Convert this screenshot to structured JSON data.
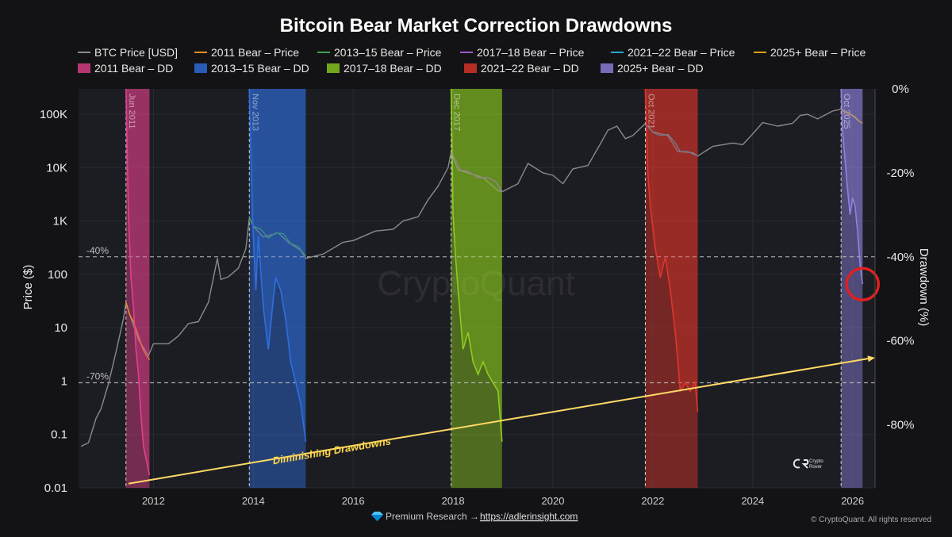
{
  "chart_data": {
    "type": "line",
    "title": "Bitcoin Bear Market Correction Drawdowns",
    "ylabel": "Price ($)",
    "y2label": "Drawdown (%)",
    "xlabel": "",
    "xlim": [
      2010.5,
      2026.45
    ],
    "ylim": [
      0.01,
      300000
    ],
    "y_scale": "log",
    "y2lim": [
      -95,
      0
    ],
    "x_ticks": [
      2012,
      2014,
      2016,
      2018,
      2020,
      2022,
      2024,
      2026
    ],
    "y_ticks": [
      {
        "value": 100000,
        "label": "100K"
      },
      {
        "value": 10000,
        "label": "10K"
      },
      {
        "value": 1000,
        "label": "1K"
      },
      {
        "value": 100,
        "label": "100"
      },
      {
        "value": 10,
        "label": "10"
      },
      {
        "value": 1,
        "label": "1"
      },
      {
        "value": 0.1,
        "label": "0.1"
      },
      {
        "value": 0.01,
        "label": "0.01"
      }
    ],
    "y2_ticks": [
      {
        "value": 0,
        "label": "0%"
      },
      {
        "value": -20,
        "label": "-20%"
      },
      {
        "value": -40,
        "label": "-40%"
      },
      {
        "value": -60,
        "label": "-60%"
      },
      {
        "value": -80,
        "label": "-80%"
      }
    ],
    "grid": true,
    "legend_position": "top",
    "legend": [
      {
        "label": "BTC Price [USD]",
        "kind": "line",
        "color": "#8a8a8a"
      },
      {
        "label": "2011 Bear – Price",
        "kind": "line",
        "color": "#f08a24"
      },
      {
        "label": "2013–15 Bear – Price",
        "kind": "line",
        "color": "#3fa34d"
      },
      {
        "label": "2017–18 Bear – Price",
        "kind": "line",
        "color": "#9b59d0"
      },
      {
        "label": "2021–22 Bear – Price",
        "kind": "line",
        "color": "#26a7c7"
      },
      {
        "label": "2025+ Bear – Price",
        "kind": "line",
        "color": "#d4a017"
      },
      {
        "label": "2011 Bear – DD",
        "kind": "area",
        "color": "#e0408a"
      },
      {
        "label": "2013–15 Bear – DD",
        "kind": "area",
        "color": "#2f6fe0"
      },
      {
        "label": "2017–18 Bear – DD",
        "kind": "area",
        "color": "#8ccc1f"
      },
      {
        "label": "2021–22 Bear – DD",
        "kind": "area",
        "color": "#e0352b"
      },
      {
        "label": "2025+ Bear – DD",
        "kind": "area",
        "color": "#8f82e0"
      }
    ],
    "price_series": {
      "name": "BTC Price [USD]",
      "points": [
        [
          2010.55,
          0.06
        ],
        [
          2010.7,
          0.07
        ],
        [
          2010.85,
          0.2
        ],
        [
          2010.95,
          0.3
        ],
        [
          2011.1,
          0.9
        ],
        [
          2011.25,
          3.5
        ],
        [
          2011.4,
          15
        ],
        [
          2011.45,
          30
        ],
        [
          2011.55,
          15
        ],
        [
          2011.7,
          6
        ],
        [
          2011.9,
          3
        ],
        [
          2012.0,
          5
        ],
        [
          2012.3,
          5
        ],
        [
          2012.5,
          7
        ],
        [
          2012.7,
          12
        ],
        [
          2012.9,
          13
        ],
        [
          2013.1,
          30
        ],
        [
          2013.28,
          200
        ],
        [
          2013.35,
          80
        ],
        [
          2013.5,
          90
        ],
        [
          2013.7,
          130
        ],
        [
          2013.85,
          300
        ],
        [
          2013.92,
          1150
        ],
        [
          2014.0,
          800
        ],
        [
          2014.2,
          500
        ],
        [
          2014.5,
          600
        ],
        [
          2014.7,
          400
        ],
        [
          2014.95,
          280
        ],
        [
          2015.05,
          200
        ],
        [
          2015.4,
          240
        ],
        [
          2015.8,
          400
        ],
        [
          2016.0,
          430
        ],
        [
          2016.45,
          650
        ],
        [
          2016.8,
          700
        ],
        [
          2017.0,
          1000
        ],
        [
          2017.3,
          1200
        ],
        [
          2017.5,
          2500
        ],
        [
          2017.7,
          4500
        ],
        [
          2017.9,
          10000
        ],
        [
          2017.96,
          19500
        ],
        [
          2018.1,
          9000
        ],
        [
          2018.3,
          8000
        ],
        [
          2018.6,
          6500
        ],
        [
          2018.9,
          3700
        ],
        [
          2019.0,
          3600
        ],
        [
          2019.3,
          5000
        ],
        [
          2019.5,
          12000
        ],
        [
          2019.8,
          8000
        ],
        [
          2020.0,
          7200
        ],
        [
          2020.2,
          5000
        ],
        [
          2020.4,
          9500
        ],
        [
          2020.7,
          11000
        ],
        [
          2020.95,
          28000
        ],
        [
          2021.1,
          50000
        ],
        [
          2021.28,
          60000
        ],
        [
          2021.45,
          35000
        ],
        [
          2021.6,
          40000
        ],
        [
          2021.85,
          67000
        ],
        [
          2022.0,
          47000
        ],
        [
          2022.3,
          40000
        ],
        [
          2022.5,
          20000
        ],
        [
          2022.8,
          19000
        ],
        [
          2022.9,
          16500
        ],
        [
          2023.2,
          25000
        ],
        [
          2023.6,
          29000
        ],
        [
          2023.8,
          27000
        ],
        [
          2024.0,
          43000
        ],
        [
          2024.2,
          70000
        ],
        [
          2024.5,
          60000
        ],
        [
          2024.8,
          68000
        ],
        [
          2024.95,
          95000
        ],
        [
          2025.1,
          100000
        ],
        [
          2025.3,
          82000
        ],
        [
          2025.6,
          115000
        ],
        [
          2025.77,
          125000
        ],
        [
          2025.9,
          110000
        ],
        [
          2026.0,
          95000
        ],
        [
          2026.12,
          75000
        ],
        [
          2026.2,
          68000
        ]
      ]
    },
    "bear_periods": [
      {
        "name": "2011 Bear",
        "start": 2011.45,
        "end": 2011.92,
        "label": "Jun 2011",
        "band_color": "#e0408a",
        "price_color": "#f08a24",
        "price": [
          [
            2011.45,
            30
          ],
          [
            2011.52,
            18
          ],
          [
            2011.6,
            13
          ],
          [
            2011.68,
            8
          ],
          [
            2011.75,
            5
          ],
          [
            2011.82,
            3.5
          ],
          [
            2011.92,
            2.5
          ]
        ],
        "drawdown": [
          [
            2011.45,
            0
          ],
          [
            2011.5,
            -30
          ],
          [
            2011.55,
            -45
          ],
          [
            2011.6,
            -52
          ],
          [
            2011.65,
            -62
          ],
          [
            2011.7,
            -68
          ],
          [
            2011.75,
            -78
          ],
          [
            2011.8,
            -85
          ],
          [
            2011.85,
            -88
          ],
          [
            2011.92,
            -92
          ]
        ]
      },
      {
        "name": "2013–15 Bear",
        "start": 2013.92,
        "end": 2015.05,
        "label": "Nov 2013",
        "band_color": "#2f6fe0",
        "price_color": "#3fa34d",
        "price": [
          [
            2013.92,
            1150
          ],
          [
            2014.0,
            800
          ],
          [
            2014.15,
            700
          ],
          [
            2014.3,
            480
          ],
          [
            2014.45,
            600
          ],
          [
            2014.6,
            580
          ],
          [
            2014.75,
            380
          ],
          [
            2014.9,
            330
          ],
          [
            2015.05,
            220
          ]
        ],
        "drawdown": [
          [
            2013.92,
            0
          ],
          [
            2013.98,
            -30
          ],
          [
            2014.05,
            -48
          ],
          [
            2014.1,
            -35
          ],
          [
            2014.2,
            -52
          ],
          [
            2014.3,
            -62
          ],
          [
            2014.4,
            -50
          ],
          [
            2014.45,
            -45
          ],
          [
            2014.55,
            -48
          ],
          [
            2014.65,
            -55
          ],
          [
            2014.75,
            -65
          ],
          [
            2014.85,
            -70
          ],
          [
            2014.95,
            -75
          ],
          [
            2015.05,
            -84
          ]
        ]
      },
      {
        "name": "2017–18 Bear",
        "start": 2017.96,
        "end": 2018.98,
        "label": "Dec 2017",
        "band_color": "#8ccc1f",
        "price_color": "#9b59d0",
        "price": [
          [
            2017.96,
            19500
          ],
          [
            2018.05,
            14000
          ],
          [
            2018.15,
            9000
          ],
          [
            2018.3,
            8500
          ],
          [
            2018.5,
            6500
          ],
          [
            2018.7,
            6500
          ],
          [
            2018.85,
            5500
          ],
          [
            2018.98,
            3500
          ]
        ],
        "drawdown": [
          [
            2017.96,
            0
          ],
          [
            2018.0,
            -30
          ],
          [
            2018.05,
            -40
          ],
          [
            2018.1,
            -48
          ],
          [
            2018.15,
            -55
          ],
          [
            2018.2,
            -62
          ],
          [
            2018.3,
            -58
          ],
          [
            2018.4,
            -65
          ],
          [
            2018.5,
            -68
          ],
          [
            2018.6,
            -65
          ],
          [
            2018.7,
            -68
          ],
          [
            2018.8,
            -70
          ],
          [
            2018.9,
            -72
          ],
          [
            2018.98,
            -84
          ]
        ]
      },
      {
        "name": "2021–22 Bear",
        "start": 2021.85,
        "end": 2022.9,
        "label": "Oct 2021",
        "band_color": "#e0352b",
        "price_color": "#26a7c7",
        "price": [
          [
            2021.85,
            67000
          ],
          [
            2022.0,
            46000
          ],
          [
            2022.15,
            40000
          ],
          [
            2022.3,
            42000
          ],
          [
            2022.45,
            29000
          ],
          [
            2022.55,
            20000
          ],
          [
            2022.7,
            20000
          ],
          [
            2022.9,
            16500
          ]
        ],
        "drawdown": [
          [
            2021.85,
            0
          ],
          [
            2021.9,
            -20
          ],
          [
            2021.95,
            -28
          ],
          [
            2022.05,
            -38
          ],
          [
            2022.15,
            -45
          ],
          [
            2022.25,
            -40
          ],
          [
            2022.35,
            -48
          ],
          [
            2022.45,
            -58
          ],
          [
            2022.5,
            -65
          ],
          [
            2022.55,
            -72
          ],
          [
            2022.65,
            -70
          ],
          [
            2022.75,
            -72
          ],
          [
            2022.85,
            -70
          ],
          [
            2022.9,
            -77
          ]
        ]
      },
      {
        "name": "2025+ Bear",
        "start": 2025.77,
        "end": 2026.2,
        "label": "Oct 2025",
        "band_color": "#8f82e0",
        "price_color": "#d4a017",
        "price": [
          [
            2025.77,
            125000
          ],
          [
            2025.85,
            110000
          ],
          [
            2025.95,
            100000
          ],
          [
            2026.05,
            90000
          ],
          [
            2026.12,
            75000
          ],
          [
            2026.2,
            68000
          ]
        ],
        "drawdown": [
          [
            2025.77,
            0
          ],
          [
            2025.8,
            -10
          ],
          [
            2025.85,
            -17
          ],
          [
            2025.9,
            -24
          ],
          [
            2025.95,
            -30
          ],
          [
            2026.0,
            -26
          ],
          [
            2026.05,
            -28
          ],
          [
            2026.1,
            -34
          ],
          [
            2026.15,
            -42
          ],
          [
            2026.2,
            -46.5
          ]
        ]
      }
    ],
    "reference_lines": [
      {
        "value": -40,
        "label": "-40%"
      },
      {
        "value": -70,
        "label": "-70%"
      }
    ],
    "trend_line": {
      "from": [
        2011.5,
        -94
      ],
      "to": [
        2026.45,
        -64
      ],
      "color": "#ffd966",
      "label": "Diminishing Drawdowns"
    },
    "highlight": {
      "x": 2026.2,
      "y2": -46.5,
      "color": "#e02020"
    }
  },
  "watermark": "CryptoQuant",
  "logo_text": [
    "Crypto",
    "Rover"
  ],
  "footer": {
    "gem_icon": "gem-icon",
    "prefix": "Premium Research →",
    "link": "https://adlerinsight.com",
    "copyright": "© CryptoQuant. All rights reserved"
  }
}
